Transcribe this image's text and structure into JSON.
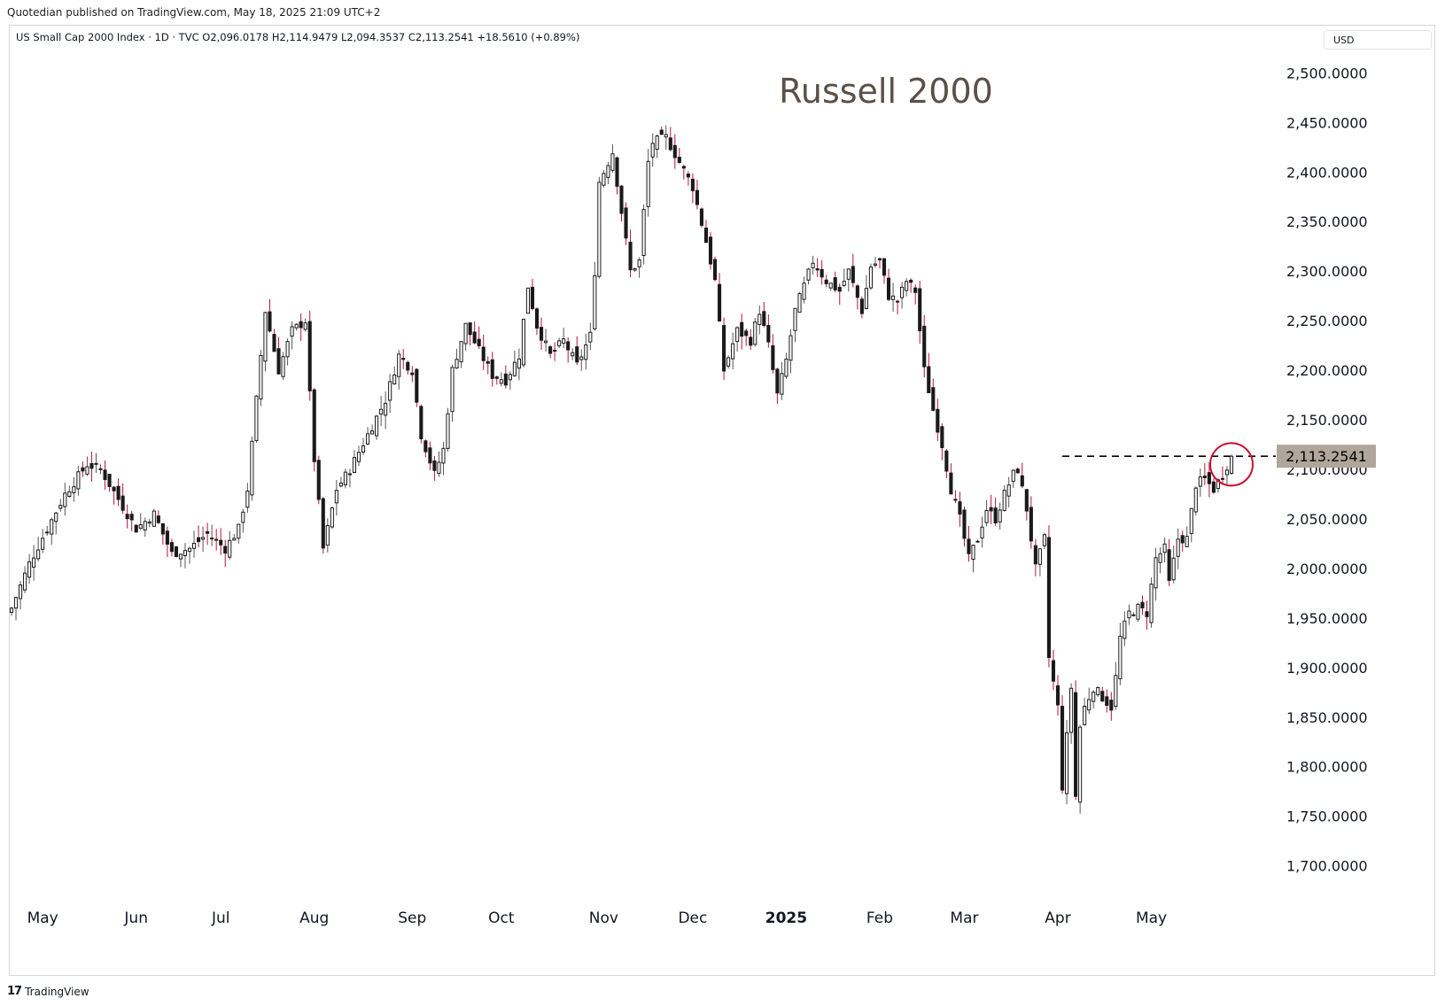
{
  "header": {
    "published": "Quotedian published on TradingView.com, May 18, 2025 21:09 UTC+2"
  },
  "legend": {
    "text": "US Small Cap 2000 Index · 1D · TVC  O2,096.0178  H2,114.9479  L2,094.3537  C2,113.2541  +18.5610 (+0.89%)"
  },
  "currency": "USD",
  "footer": {
    "brand": "TradingView",
    "logo": "tradingview-logo-icon"
  },
  "colors": {
    "up_fill": "#ffffff",
    "up_border": "#1a1a1a",
    "down_fill": "#1a1a1a",
    "down_wick": "#b5143c",
    "price_label_bg": "#b0a69a",
    "circle": "#c8102e",
    "title": "#5a5048"
  },
  "chart_data": {
    "type": "candlestick",
    "title": "Russell 2000",
    "price_label": "2,113.2541",
    "current_price": 2113.2541,
    "ylim": [
      1680,
      2520
    ],
    "y_ticks": [
      {
        "value": 2500,
        "label": "2,500.0000"
      },
      {
        "value": 2450,
        "label": "2,450.0000"
      },
      {
        "value": 2400,
        "label": "2,400.0000"
      },
      {
        "value": 2350,
        "label": "2,350.0000"
      },
      {
        "value": 2300,
        "label": "2,300.0000"
      },
      {
        "value": 2250,
        "label": "2,250.0000"
      },
      {
        "value": 2200,
        "label": "2,200.0000"
      },
      {
        "value": 2150,
        "label": "2,150.0000"
      },
      {
        "value": 2100,
        "label": "2,100.0000"
      },
      {
        "value": 2050,
        "label": "2,050.0000"
      },
      {
        "value": 2000,
        "label": "2,000.0000"
      },
      {
        "value": 1950,
        "label": "1,950.0000"
      },
      {
        "value": 1900,
        "label": "1,900.0000"
      },
      {
        "value": 1850,
        "label": "1,850.0000"
      },
      {
        "value": 1800,
        "label": "1,800.0000"
      },
      {
        "value": 1750,
        "label": "1,750.0000"
      },
      {
        "value": 1700,
        "label": "1,700.0000"
      }
    ],
    "x_ticks": [
      {
        "label": "May",
        "bar": 7,
        "bold": false
      },
      {
        "label": "Jun",
        "bar": 28,
        "bold": false
      },
      {
        "label": "Jul",
        "bar": 47,
        "bold": false
      },
      {
        "label": "Aug",
        "bar": 68,
        "bold": false
      },
      {
        "label": "Sep",
        "bar": 90,
        "bold": false
      },
      {
        "label": "Oct",
        "bar": 110,
        "bold": false
      },
      {
        "label": "Nov",
        "bar": 133,
        "bold": false
      },
      {
        "label": "Dec",
        "bar": 153,
        "bold": false
      },
      {
        "label": "2025",
        "bar": 174,
        "bold": true
      },
      {
        "label": "Feb",
        "bar": 195,
        "bold": false
      },
      {
        "label": "Mar",
        "bar": 214,
        "bold": false
      },
      {
        "label": "Apr",
        "bar": 235,
        "bold": false
      },
      {
        "label": "May",
        "bar": 256,
        "bold": false
      }
    ],
    "reference_line": {
      "value": 2113.2541,
      "from_bar": 236,
      "to_bar": 277
    },
    "highlight_circle": {
      "bar": 274,
      "value": 2105
    },
    "anchors": [
      {
        "i": 0,
        "c": 1960
      },
      {
        "i": 4,
        "c": 2005
      },
      {
        "i": 8,
        "c": 2040
      },
      {
        "i": 12,
        "c": 2075
      },
      {
        "i": 17,
        "c": 2105
      },
      {
        "i": 20,
        "c": 2100
      },
      {
        "i": 24,
        "c": 2070
      },
      {
        "i": 28,
        "c": 2040
      },
      {
        "i": 32,
        "c": 2055
      },
      {
        "i": 36,
        "c": 2015
      },
      {
        "i": 40,
        "c": 2020
      },
      {
        "i": 44,
        "c": 2035
      },
      {
        "i": 48,
        "c": 2020
      },
      {
        "i": 51,
        "c": 2040
      },
      {
        "i": 53,
        "c": 2080
      },
      {
        "i": 55,
        "c": 2170
      },
      {
        "i": 57,
        "c": 2260
      },
      {
        "i": 60,
        "c": 2200
      },
      {
        "i": 63,
        "c": 2240
      },
      {
        "i": 66,
        "c": 2250
      },
      {
        "i": 67,
        "c": 2175
      },
      {
        "i": 68,
        "c": 2110
      },
      {
        "i": 70,
        "c": 2020
      },
      {
        "i": 73,
        "c": 2080
      },
      {
        "i": 76,
        "c": 2100
      },
      {
        "i": 80,
        "c": 2135
      },
      {
        "i": 84,
        "c": 2170
      },
      {
        "i": 87,
        "c": 2215
      },
      {
        "i": 90,
        "c": 2200
      },
      {
        "i": 92,
        "c": 2135
      },
      {
        "i": 95,
        "c": 2095
      },
      {
        "i": 97,
        "c": 2120
      },
      {
        "i": 99,
        "c": 2200
      },
      {
        "i": 102,
        "c": 2245
      },
      {
        "i": 105,
        "c": 2220
      },
      {
        "i": 108,
        "c": 2195
      },
      {
        "i": 111,
        "c": 2190
      },
      {
        "i": 114,
        "c": 2215
      },
      {
        "i": 116,
        "c": 2285
      },
      {
        "i": 118,
        "c": 2245
      },
      {
        "i": 121,
        "c": 2215
      },
      {
        "i": 124,
        "c": 2230
      },
      {
        "i": 127,
        "c": 2205
      },
      {
        "i": 130,
        "c": 2235
      },
      {
        "i": 131,
        "c": 2300
      },
      {
        "i": 132,
        "c": 2390
      },
      {
        "i": 135,
        "c": 2420
      },
      {
        "i": 137,
        "c": 2360
      },
      {
        "i": 139,
        "c": 2300
      },
      {
        "i": 141,
        "c": 2310
      },
      {
        "i": 143,
        "c": 2410
      },
      {
        "i": 144,
        "c": 2430
      },
      {
        "i": 147,
        "c": 2435
      },
      {
        "i": 150,
        "c": 2410
      },
      {
        "i": 153,
        "c": 2385
      },
      {
        "i": 156,
        "c": 2330
      },
      {
        "i": 158,
        "c": 2290
      },
      {
        "i": 160,
        "c": 2200
      },
      {
        "i": 163,
        "c": 2240
      },
      {
        "i": 166,
        "c": 2230
      },
      {
        "i": 168,
        "c": 2260
      },
      {
        "i": 170,
        "c": 2225
      },
      {
        "i": 172,
        "c": 2175
      },
      {
        "i": 174,
        "c": 2210
      },
      {
        "i": 176,
        "c": 2260
      },
      {
        "i": 178,
        "c": 2285
      },
      {
        "i": 180,
        "c": 2310
      },
      {
        "i": 183,
        "c": 2290
      },
      {
        "i": 186,
        "c": 2280
      },
      {
        "i": 188,
        "c": 2300
      },
      {
        "i": 191,
        "c": 2260
      },
      {
        "i": 193,
        "c": 2305
      },
      {
        "i": 195,
        "c": 2310
      },
      {
        "i": 197,
        "c": 2275
      },
      {
        "i": 199,
        "c": 2270
      },
      {
        "i": 201,
        "c": 2290
      },
      {
        "i": 203,
        "c": 2280
      },
      {
        "i": 205,
        "c": 2200
      },
      {
        "i": 207,
        "c": 2160
      },
      {
        "i": 209,
        "c": 2125
      },
      {
        "i": 211,
        "c": 2080
      },
      {
        "i": 213,
        "c": 2050
      },
      {
        "i": 215,
        "c": 2010
      },
      {
        "i": 217,
        "c": 2030
      },
      {
        "i": 219,
        "c": 2060
      },
      {
        "i": 221,
        "c": 2050
      },
      {
        "i": 223,
        "c": 2075
      },
      {
        "i": 225,
        "c": 2095
      },
      {
        "i": 226,
        "c": 2100
      },
      {
        "i": 228,
        "c": 2060
      },
      {
        "i": 230,
        "c": 2000
      },
      {
        "i": 232,
        "c": 2030
      },
      {
        "i": 233,
        "c": 1910
      },
      {
        "i": 235,
        "c": 1860
      },
      {
        "i": 236,
        "c": 1780
      },
      {
        "i": 238,
        "c": 1880
      },
      {
        "i": 239,
        "c": 1770
      },
      {
        "i": 240,
        "c": 1840
      },
      {
        "i": 241,
        "c": 1860
      },
      {
        "i": 243,
        "c": 1880
      },
      {
        "i": 245,
        "c": 1870
      },
      {
        "i": 247,
        "c": 1860
      },
      {
        "i": 248,
        "c": 1890
      },
      {
        "i": 249,
        "c": 1930
      },
      {
        "i": 251,
        "c": 1955
      },
      {
        "i": 253,
        "c": 1960
      },
      {
        "i": 255,
        "c": 1955
      },
      {
        "i": 257,
        "c": 2010
      },
      {
        "i": 259,
        "c": 2020
      },
      {
        "i": 260,
        "c": 1985
      },
      {
        "i": 262,
        "c": 2030
      },
      {
        "i": 264,
        "c": 2030
      },
      {
        "i": 266,
        "c": 2085
      },
      {
        "i": 268,
        "c": 2090
      },
      {
        "i": 270,
        "c": 2080
      },
      {
        "i": 272,
        "c": 2095
      },
      {
        "i": 274,
        "c": 2113
      }
    ],
    "bar_count": 275
  }
}
